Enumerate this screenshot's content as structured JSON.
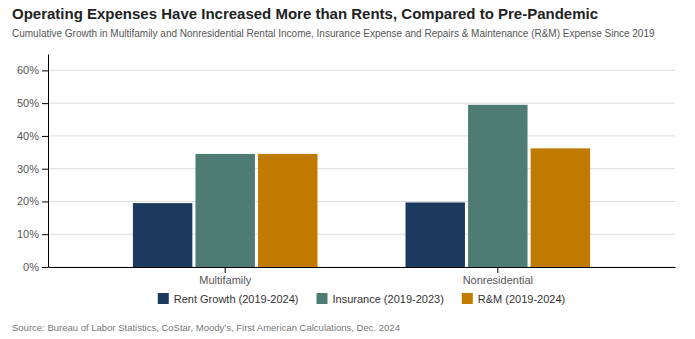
{
  "chart_data": {
    "type": "bar",
    "title": "Operating Expenses Have Increased More than Rents, Compared to Pre-Pandemic",
    "subtitle": "Cumulative Growth in Multifamily and Nonresidential Rental Income, Insurance Expense and Repairs & Maintenance (R&M) Expense Since 2019",
    "annotations": [
      "Source: Bureau of Labor Statistics, CoStar, Moody’s, First American Calculations, Dec. 2024"
    ],
    "categories": [
      "Multifamily",
      "Nonresidential"
    ],
    "series": [
      {
        "name": "Rent Growth (2019-2024)",
        "color": "#1b3a5e",
        "values": [
          0.195,
          0.197
        ]
      },
      {
        "name": "Insurance (2019-2023)",
        "color": "#4e7c72",
        "values": [
          0.345,
          0.495
        ]
      },
      {
        "name": "R&M (2019-2024)",
        "color": "#c07a00",
        "values": [
          0.345,
          0.362
        ]
      }
    ],
    "ylim": [
      0,
      0.65
    ],
    "yticks": [
      {
        "value": 0.0,
        "label": "0%"
      },
      {
        "value": 0.1,
        "label": "10%"
      },
      {
        "value": 0.2,
        "label": "20%"
      },
      {
        "value": 0.3,
        "label": "30%"
      },
      {
        "value": 0.4,
        "label": "40%"
      },
      {
        "value": 0.5,
        "label": "50%"
      },
      {
        "value": 0.6,
        "label": "60%"
      }
    ],
    "grid": true,
    "legend": "bottom"
  }
}
